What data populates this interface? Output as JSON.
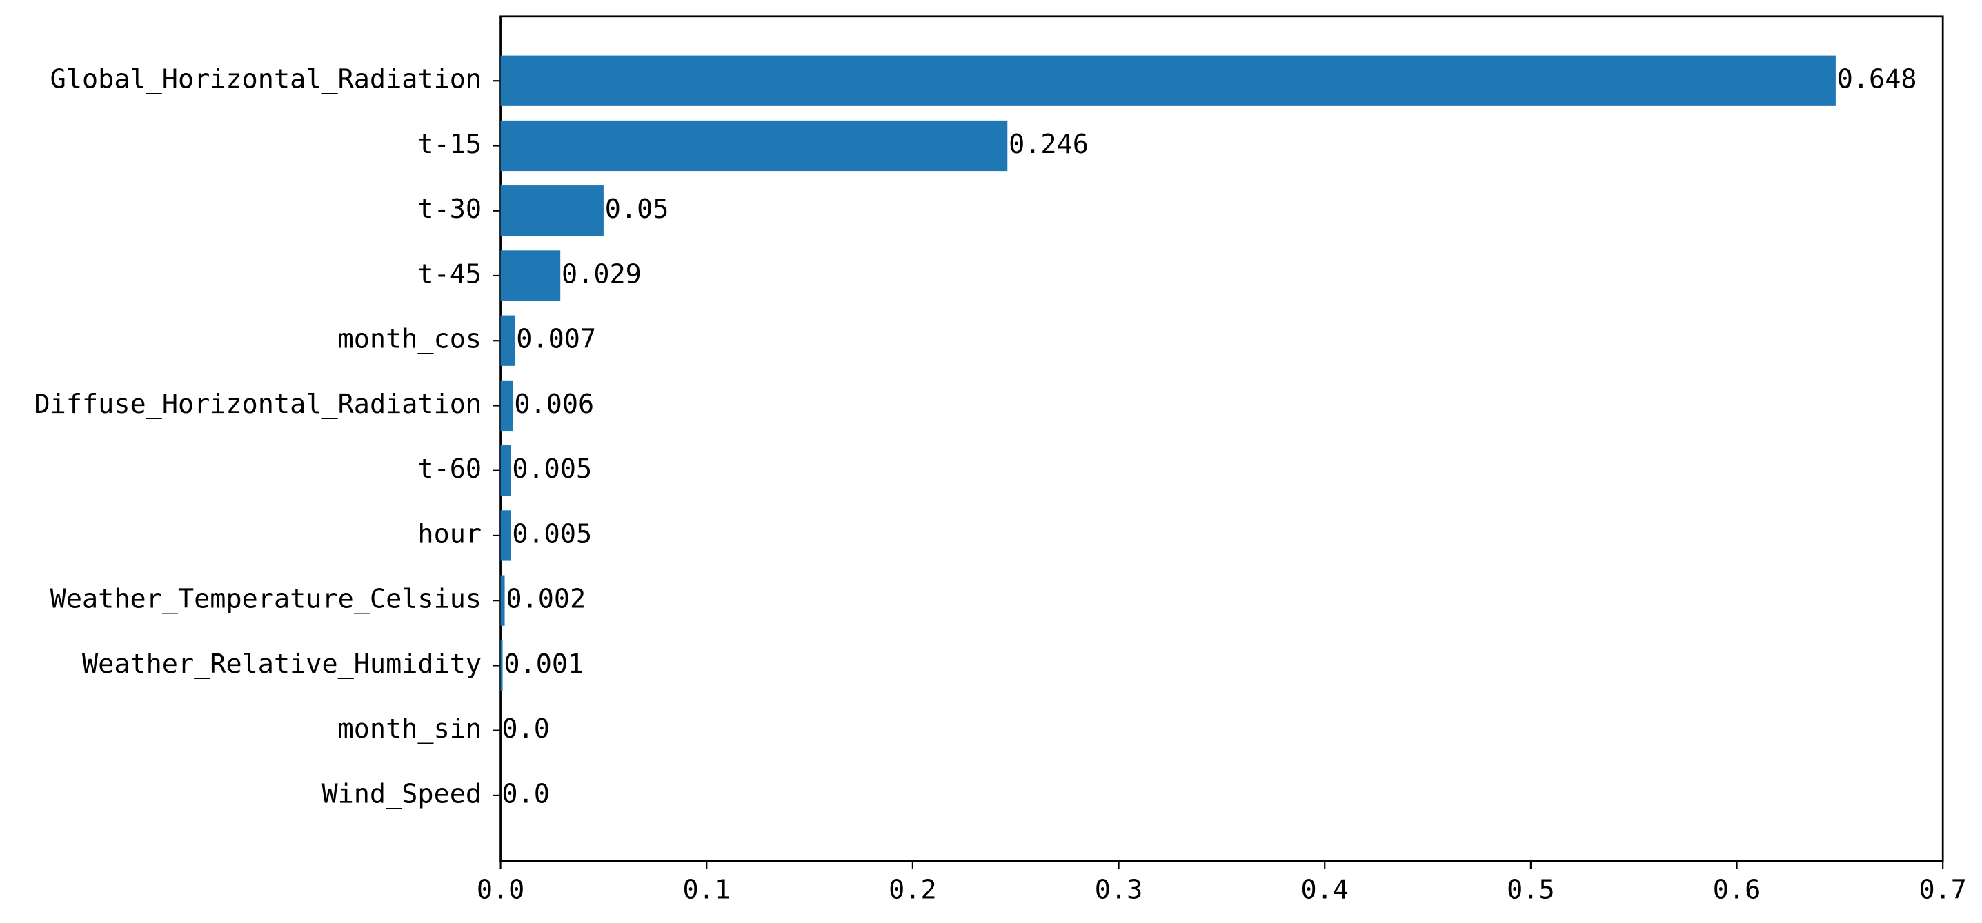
{
  "chart_data": {
    "type": "barh",
    "categories": [
      "Global_Horizontal_Radiation",
      "t-15",
      "t-30",
      "t-45",
      "month_cos",
      "Diffuse_Horizontal_Radiation",
      "t-60",
      "hour",
      "Weather_Temperature_Celsius",
      "Weather_Relative_Humidity",
      "month_sin",
      "Wind_Speed"
    ],
    "values": [
      0.648,
      0.246,
      0.05,
      0.029,
      0.007,
      0.006,
      0.005,
      0.005,
      0.002,
      0.001,
      0.0,
      0.0
    ],
    "value_labels": [
      "0.648",
      "0.246",
      "0.05",
      "0.029",
      "0.007",
      "0.006",
      "0.005",
      "0.005",
      "0.002",
      "0.001",
      "0.0",
      "0.0"
    ],
    "color": "#1f77b4",
    "xlim": [
      0,
      0.7
    ],
    "xticks": [
      {
        "value": 0,
        "label": "0.0"
      },
      0.1,
      0.2,
      0.3,
      0.4,
      0.5,
      0.6,
      0.7
    ],
    "grid": false
  }
}
